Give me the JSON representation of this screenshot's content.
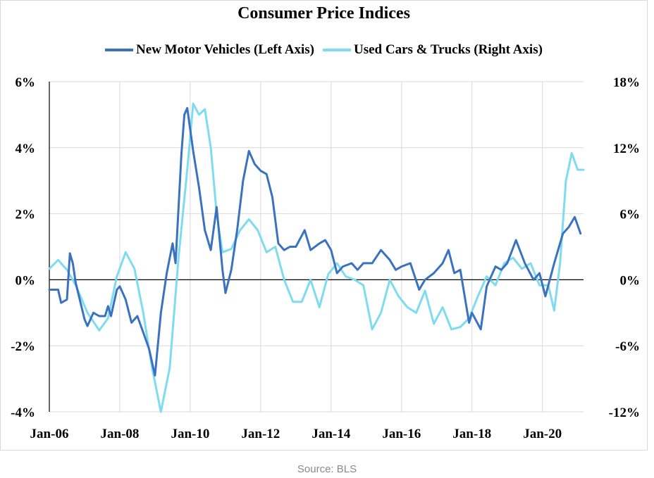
{
  "source_note": "Source: BLS",
  "colors": {
    "series1": "#3a72c0",
    "series2": "#7ddcf0",
    "grid": "#d9d9d9",
    "axis": "#000000"
  },
  "chart_data": {
    "type": "line",
    "title": "Consumer Price Indices",
    "legend_position": "top",
    "grid": true,
    "x_tick_labels": [
      "Jan-06",
      "Jan-08",
      "Jan-10",
      "Jan-12",
      "Jan-14",
      "Jan-16",
      "Jan-18",
      "Jan-20"
    ],
    "x_range": [
      "2006-01",
      "2021-03"
    ],
    "left_axis": {
      "ylim": [
        -4,
        6
      ],
      "ticks": [
        -4,
        -2,
        0,
        2,
        4,
        6
      ],
      "tick_labels": [
        "-4%",
        "-2%",
        "0%",
        "2%",
        "4%",
        "6%"
      ]
    },
    "right_axis": {
      "ylim": [
        -12,
        18
      ],
      "ticks": [
        -12,
        -6,
        0,
        6,
        12,
        18
      ],
      "tick_labels": [
        "-12%",
        "-6%",
        "0%",
        "6%",
        "12%",
        "18%"
      ]
    },
    "series": [
      {
        "name": "New Motor Vehicles (Left Axis)",
        "axis": "left",
        "color": "#3a72c0",
        "points": [
          [
            "2006-01",
            -0.3
          ],
          [
            "2006-04",
            -0.3
          ],
          [
            "2006-05",
            -0.7
          ],
          [
            "2006-07",
            -0.6
          ],
          [
            "2006-08",
            0.8
          ],
          [
            "2006-09",
            0.5
          ],
          [
            "2006-10",
            -0.1
          ],
          [
            "2007-01",
            -1.2
          ],
          [
            "2007-02",
            -1.4
          ],
          [
            "2007-04",
            -1.0
          ],
          [
            "2007-06",
            -1.1
          ],
          [
            "2007-08",
            -1.1
          ],
          [
            "2007-09",
            -0.8
          ],
          [
            "2007-10",
            -1.1
          ],
          [
            "2007-12",
            -0.3
          ],
          [
            "2008-01",
            -0.2
          ],
          [
            "2008-03",
            -0.6
          ],
          [
            "2008-05",
            -1.3
          ],
          [
            "2008-07",
            -1.1
          ],
          [
            "2008-09",
            -1.6
          ],
          [
            "2008-11",
            -2.1
          ],
          [
            "2009-01",
            -2.9
          ],
          [
            "2009-03",
            -1.0
          ],
          [
            "2009-05",
            0.2
          ],
          [
            "2009-07",
            1.1
          ],
          [
            "2009-08",
            0.5
          ],
          [
            "2009-10",
            3.8
          ],
          [
            "2009-11",
            5.0
          ],
          [
            "2009-12",
            5.2
          ],
          [
            "2010-02",
            3.9
          ],
          [
            "2010-04",
            2.8
          ],
          [
            "2010-06",
            1.5
          ],
          [
            "2010-08",
            0.9
          ],
          [
            "2010-10",
            2.2
          ],
          [
            "2010-12",
            0.3
          ],
          [
            "2011-01",
            -0.4
          ],
          [
            "2011-03",
            0.3
          ],
          [
            "2011-05",
            1.5
          ],
          [
            "2011-07",
            3.0
          ],
          [
            "2011-09",
            3.9
          ],
          [
            "2011-11",
            3.5
          ],
          [
            "2012-01",
            3.3
          ],
          [
            "2012-03",
            3.2
          ],
          [
            "2012-05",
            2.5
          ],
          [
            "2012-07",
            1.1
          ],
          [
            "2012-09",
            0.9
          ],
          [
            "2012-11",
            1.0
          ],
          [
            "2013-01",
            1.0
          ],
          [
            "2013-04",
            1.5
          ],
          [
            "2013-06",
            0.9
          ],
          [
            "2013-09",
            1.1
          ],
          [
            "2013-11",
            1.2
          ],
          [
            "2014-01",
            0.9
          ],
          [
            "2014-03",
            0.2
          ],
          [
            "2014-05",
            0.4
          ],
          [
            "2014-08",
            0.5
          ],
          [
            "2014-10",
            0.3
          ],
          [
            "2014-12",
            0.5
          ],
          [
            "2015-03",
            0.5
          ],
          [
            "2015-06",
            0.9
          ],
          [
            "2015-09",
            0.6
          ],
          [
            "2015-11",
            0.3
          ],
          [
            "2016-01",
            0.4
          ],
          [
            "2016-04",
            0.5
          ],
          [
            "2016-07",
            -0.3
          ],
          [
            "2016-09",
            0.0
          ],
          [
            "2016-12",
            0.2
          ],
          [
            "2017-03",
            0.5
          ],
          [
            "2017-05",
            0.9
          ],
          [
            "2017-07",
            0.2
          ],
          [
            "2017-09",
            0.3
          ],
          [
            "2017-12",
            -1.3
          ],
          [
            "2018-01",
            -1.0
          ],
          [
            "2018-04",
            -1.5
          ],
          [
            "2018-06",
            -0.2
          ],
          [
            "2018-09",
            0.4
          ],
          [
            "2018-11",
            0.3
          ],
          [
            "2019-01",
            0.5
          ],
          [
            "2019-04",
            1.2
          ],
          [
            "2019-07",
            0.5
          ],
          [
            "2019-10",
            0.0
          ],
          [
            "2019-12",
            0.2
          ],
          [
            "2020-02",
            -0.5
          ],
          [
            "2020-05",
            0.5
          ],
          [
            "2020-08",
            1.4
          ],
          [
            "2020-10",
            1.6
          ],
          [
            "2020-12",
            1.9
          ],
          [
            "2021-02",
            1.4
          ]
        ]
      },
      {
        "name": "Used Cars & Trucks (Right Axis)",
        "axis": "right",
        "color": "#7ddcf0",
        "points": [
          [
            "2006-01",
            1.0
          ],
          [
            "2006-04",
            1.8
          ],
          [
            "2006-07",
            0.9
          ],
          [
            "2006-10",
            -0.5
          ],
          [
            "2007-02",
            -3.0
          ],
          [
            "2007-06",
            -4.6
          ],
          [
            "2007-09",
            -3.5
          ],
          [
            "2007-12",
            0.3
          ],
          [
            "2008-03",
            2.5
          ],
          [
            "2008-06",
            1.0
          ],
          [
            "2008-09",
            -3.0
          ],
          [
            "2008-12",
            -8.0
          ],
          [
            "2009-03",
            -12.0
          ],
          [
            "2009-06",
            -8.0
          ],
          [
            "2009-09",
            2.0
          ],
          [
            "2009-12",
            10.0
          ],
          [
            "2010-02",
            16.0
          ],
          [
            "2010-04",
            15.0
          ],
          [
            "2010-06",
            15.5
          ],
          [
            "2010-08",
            12.0
          ],
          [
            "2010-10",
            6.0
          ],
          [
            "2010-12",
            2.5
          ],
          [
            "2011-03",
            2.8
          ],
          [
            "2011-06",
            4.5
          ],
          [
            "2011-09",
            5.5
          ],
          [
            "2011-12",
            4.5
          ],
          [
            "2012-03",
            2.5
          ],
          [
            "2012-06",
            3.0
          ],
          [
            "2012-09",
            0.0
          ],
          [
            "2012-12",
            -2.0
          ],
          [
            "2013-03",
            -2.0
          ],
          [
            "2013-06",
            0.0
          ],
          [
            "2013-09",
            -2.5
          ],
          [
            "2013-12",
            0.5
          ],
          [
            "2014-03",
            1.5
          ],
          [
            "2014-06",
            0.3
          ],
          [
            "2014-09",
            0.0
          ],
          [
            "2014-12",
            -0.5
          ],
          [
            "2015-03",
            -4.5
          ],
          [
            "2015-06",
            -3.0
          ],
          [
            "2015-09",
            0.0
          ],
          [
            "2015-12",
            -1.5
          ],
          [
            "2016-03",
            -2.5
          ],
          [
            "2016-06",
            -3.0
          ],
          [
            "2016-09",
            -1.0
          ],
          [
            "2016-12",
            -4.0
          ],
          [
            "2017-03",
            -2.5
          ],
          [
            "2017-06",
            -4.5
          ],
          [
            "2017-09",
            -4.3
          ],
          [
            "2017-12",
            -3.5
          ],
          [
            "2018-03",
            -1.5
          ],
          [
            "2018-06",
            0.3
          ],
          [
            "2018-09",
            -0.5
          ],
          [
            "2018-12",
            1.5
          ],
          [
            "2019-03",
            2.0
          ],
          [
            "2019-06",
            1.0
          ],
          [
            "2019-09",
            1.5
          ],
          [
            "2019-12",
            -0.5
          ],
          [
            "2020-03",
            -0.5
          ],
          [
            "2020-05",
            -2.8
          ],
          [
            "2020-07",
            1.5
          ],
          [
            "2020-09",
            9.0
          ],
          [
            "2020-11",
            11.5
          ],
          [
            "2021-01",
            10.0
          ],
          [
            "2021-03",
            10.0
          ]
        ]
      }
    ]
  }
}
